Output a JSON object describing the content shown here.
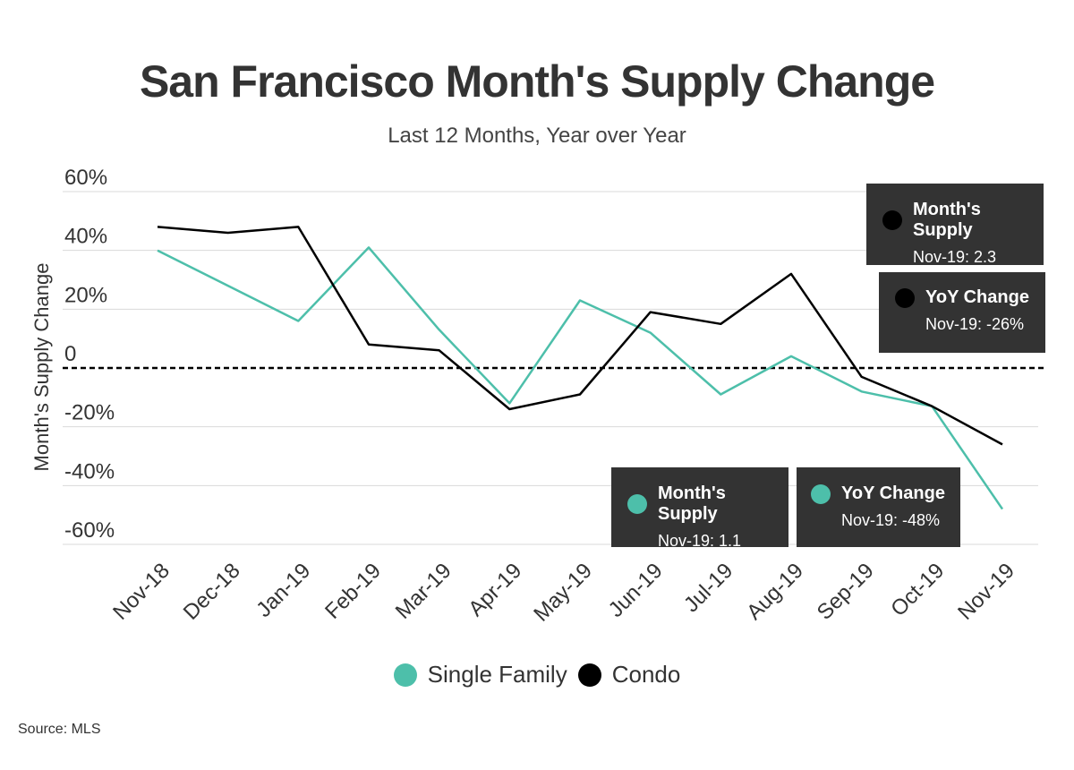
{
  "title": "San Francisco Month's Supply Change",
  "subtitle": "Last 12 Months, Year over Year",
  "source": "Source:  MLS",
  "colors": {
    "single_family": "#4DBFAA",
    "condo": "#000000",
    "callout_bg": "#333333",
    "grid": "#d9d9d9",
    "text": "#333333"
  },
  "callouts": {
    "condo_supply": {
      "label": "Month's Supply",
      "value": "Nov-19: 2.3"
    },
    "condo_yoy": {
      "label": "YoY Change",
      "value": "Nov-19: -26%"
    },
    "sf_supply": {
      "label": "Month's Supply",
      "value": "Nov-19: 1.1"
    },
    "sf_yoy": {
      "label": "YoY Change",
      "value": "Nov-19: -48%"
    }
  },
  "chart_data": {
    "type": "line",
    "ylabel": "Month's Supply Change",
    "xlabel": "",
    "ylim": [
      -60,
      60
    ],
    "yticks": [
      60,
      40,
      20,
      0,
      -20,
      -40,
      -60
    ],
    "ytick_labels": [
      "60%",
      "40%",
      "20%",
      "0",
      "-20%",
      "-40%",
      "-60%"
    ],
    "grid": true,
    "zero_line": "dashed",
    "legend": "bottom-center",
    "categories": [
      "Nov-18",
      "Dec-18",
      "Jan-19",
      "Feb-19",
      "Mar-19",
      "Apr-19",
      "May-19",
      "Jun-19",
      "Jul-19",
      "Aug-19",
      "Sep-19",
      "Oct-19",
      "Nov-19"
    ],
    "series": [
      {
        "name": "Single Family",
        "color": "#4DBFAA",
        "values": [
          40,
          28,
          16,
          41,
          13,
          -12,
          23,
          12,
          -9,
          4,
          -8,
          -13,
          -48
        ]
      },
      {
        "name": "Condo",
        "color": "#000000",
        "values": [
          48,
          46,
          48,
          8,
          6,
          -14,
          -9,
          19,
          15,
          32,
          -3,
          -13,
          -26
        ]
      }
    ]
  }
}
